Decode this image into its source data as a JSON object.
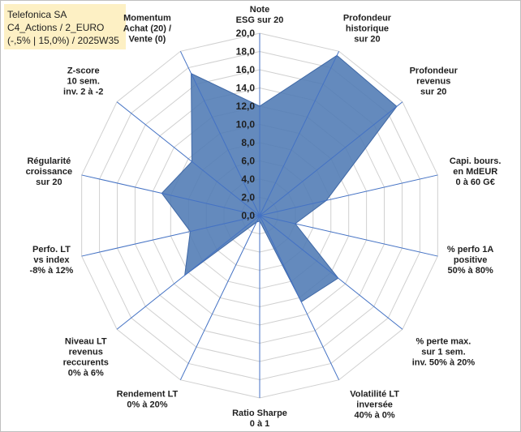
{
  "title_box": {
    "line1": "Telefonica SA",
    "line2": "C4_Actions / 2_EURO",
    "line3": "(-,5% | 15,0%) / 2025W35",
    "background": "#fdf0c4"
  },
  "chart_data": {
    "type": "radar",
    "rmin": 0,
    "rmax": 20,
    "tick_step": 2,
    "tick_labels": [
      "0,0",
      "2,0",
      "4,0",
      "6,0",
      "8,0",
      "10,0",
      "12,0",
      "14,0",
      "16,0",
      "18,0",
      "20,0"
    ],
    "grid": true,
    "fill_color": "#4f7ab4",
    "axes": [
      {
        "label": [
          "Note",
          "ESG sur 20"
        ],
        "value": 12.0
      },
      {
        "label": [
          "Profondeur",
          "historique",
          "sur 20"
        ],
        "value": 19.5
      },
      {
        "label": [
          "Profondeur",
          "revenus",
          "sur 20"
        ],
        "value": 19.2
      },
      {
        "label": [
          "Capi. bours.",
          "en MdEUR",
          "0 à 60 G€"
        ],
        "value": 7.5
      },
      {
        "label": [
          "% perfo 1A",
          "positive",
          "50% à 80%"
        ],
        "value": 4.0
      },
      {
        "label": [
          "% perte max.",
          "sur 1 sem.",
          "inv. 50% à 20%"
        ],
        "value": 11.0
      },
      {
        "label": [
          "Volatilité LT",
          "inversée",
          "40% à 0%"
        ],
        "value": 10.5
      },
      {
        "label": [
          "Ratio Sharpe",
          "0 à 1"
        ],
        "value": 0.6
      },
      {
        "label": [
          "Rendement LT",
          "0% à 20%"
        ],
        "value": 0.8
      },
      {
        "label": [
          "Niveau LT",
          "revenus",
          "reccurents",
          "0% à 6%"
        ],
        "value": 10.5
      },
      {
        "label": [
          "Perfo. LT",
          "vs index",
          "-8% à 12%"
        ],
        "value": 7.8
      },
      {
        "label": [
          "Régularité",
          "croissance",
          "sur 20"
        ],
        "value": 11.0
      },
      {
        "label": [
          "Z-score",
          "10 sem.",
          "inv. 2 à -2"
        ],
        "value": 9.5
      },
      {
        "label": [
          "Momentum",
          "Achat (20) /",
          "Vente (0)"
        ],
        "value": 17.3
      }
    ]
  }
}
